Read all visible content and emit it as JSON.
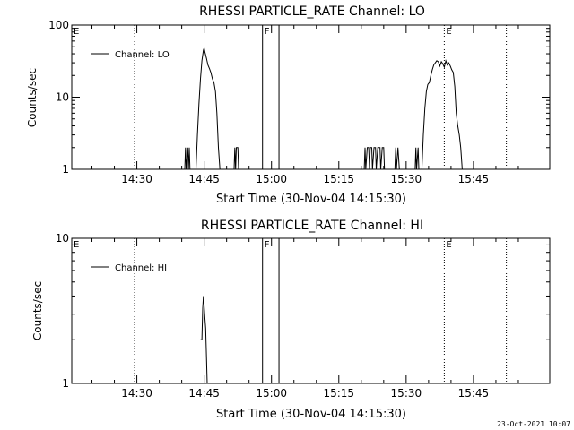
{
  "footer": {
    "timestamp": "23-Oct-2021 10:07"
  },
  "chart_data": [
    {
      "type": "line",
      "title": "RHESSI PARTICLE_RATE Channel: LO",
      "xlabel": "Start Time (30-Nov-04 14:15:30)",
      "ylabel": "Counts/sec",
      "scale": "log",
      "xlim": [
        "14:15:30",
        "16:02"
      ],
      "ylim": [
        1,
        100
      ],
      "xticks": [
        "14:30",
        "14:45",
        "15:00",
        "15:15",
        "15:30",
        "15:45"
      ],
      "yticks": [
        "1",
        "10",
        "100"
      ],
      "legend": {
        "position": "top-left",
        "entries": [
          "Channel: LO"
        ]
      },
      "flags": [
        {
          "label": "E",
          "time": "14:15:30",
          "style": "dotted"
        },
        {
          "label": "",
          "time": "14:29:30",
          "style": "dotted"
        },
        {
          "label": "F",
          "time": "14:58:00",
          "style": "solid"
        },
        {
          "label": "",
          "time": "15:01:40",
          "style": "solid"
        },
        {
          "label": "E",
          "time": "15:38:30",
          "style": "dotted"
        },
        {
          "label": "",
          "time": "15:52:20",
          "style": "dotted"
        }
      ],
      "series": [
        {
          "name": "Channel: LO",
          "segments": [
            [
              [
                "14:40:40",
                1
              ],
              [
                "14:40:50",
                2
              ],
              [
                "14:41:00",
                1
              ],
              [
                "14:41:20",
                2
              ],
              [
                "14:41:30",
                1
              ],
              [
                "14:41:40",
                2
              ],
              [
                "14:41:50",
                1
              ]
            ],
            [
              [
                "14:43:10",
                1
              ],
              [
                "14:43:30",
                3
              ],
              [
                "14:43:50",
                8
              ],
              [
                "14:44:10",
                18
              ],
              [
                "14:44:30",
                32
              ],
              [
                "14:44:50",
                45
              ],
              [
                "14:45:00",
                48
              ],
              [
                "14:45:10",
                42
              ],
              [
                "14:45:30",
                35
              ],
              [
                "14:45:50",
                28
              ],
              [
                "14:46:10",
                25
              ],
              [
                "14:46:30",
                22
              ],
              [
                "14:46:50",
                18
              ],
              [
                "14:47:10",
                16
              ],
              [
                "14:47:30",
                12
              ],
              [
                "14:47:50",
                6
              ],
              [
                "14:48:10",
                2
              ],
              [
                "14:48:30",
                1
              ]
            ],
            [
              [
                "14:51:40",
                1
              ],
              [
                "14:51:50",
                2
              ],
              [
                "14:52:00",
                1
              ],
              [
                "14:52:10",
                2
              ],
              [
                "14:52:30",
                2
              ],
              [
                "14:52:40",
                1
              ]
            ],
            [
              [
                "15:20:40",
                1
              ],
              [
                "15:20:50",
                2
              ],
              [
                "15:21:00",
                1
              ],
              [
                "15:21:20",
                2
              ],
              [
                "15:21:40",
                2
              ],
              [
                "15:21:50",
                1
              ],
              [
                "15:22:00",
                2
              ],
              [
                "15:22:20",
                2
              ],
              [
                "15:22:30",
                1
              ],
              [
                "15:22:50",
                2
              ],
              [
                "15:23:10",
                2
              ],
              [
                "15:23:20",
                1
              ],
              [
                "15:23:40",
                2
              ],
              [
                "15:24:10",
                2
              ],
              [
                "15:24:20",
                1
              ],
              [
                "15:24:40",
                2
              ],
              [
                "15:25:00",
                2
              ],
              [
                "15:25:10",
                1
              ]
            ],
            [
              [
                "15:27:30",
                1
              ],
              [
                "15:27:40",
                2
              ],
              [
                "15:27:50",
                1
              ],
              [
                "15:28:10",
                2
              ],
              [
                "15:28:30",
                1
              ]
            ],
            [
              [
                "15:32:00",
                1
              ],
              [
                "15:32:10",
                2
              ],
              [
                "15:32:20",
                1
              ],
              [
                "15:32:40",
                2
              ],
              [
                "15:32:50",
                1
              ]
            ],
            [
              [
                "15:33:30",
                1
              ],
              [
                "15:33:50",
                3
              ],
              [
                "15:34:10",
                7
              ],
              [
                "15:34:30",
                12
              ],
              [
                "15:34:50",
                15
              ],
              [
                "15:35:10",
                16
              ],
              [
                "15:35:30",
                20
              ],
              [
                "15:35:50",
                24
              ],
              [
                "15:36:10",
                28
              ],
              [
                "15:36:30",
                30
              ],
              [
                "15:36:50",
                32
              ],
              [
                "15:37:10",
                31
              ],
              [
                "15:37:30",
                27
              ],
              [
                "15:37:50",
                31
              ],
              [
                "15:38:10",
                29
              ],
              [
                "15:38:30",
                26
              ],
              [
                "15:38:50",
                32
              ],
              [
                "15:39:10",
                28
              ],
              [
                "15:39:30",
                30
              ],
              [
                "15:39:50",
                27
              ],
              [
                "15:40:10",
                24
              ],
              [
                "15:40:30",
                22
              ],
              [
                "15:40:50",
                14
              ],
              [
                "15:41:10",
                6
              ],
              [
                "15:41:30",
                4
              ],
              [
                "15:41:50",
                3
              ],
              [
                "15:42:10",
                2
              ],
              [
                "15:42:30",
                1
              ]
            ]
          ]
        }
      ]
    },
    {
      "type": "line",
      "title": "RHESSI PARTICLE_RATE Channel: HI",
      "xlabel": "Start Time (30-Nov-04 14:15:30)",
      "ylabel": "Counts/sec",
      "scale": "log",
      "xlim": [
        "14:15:30",
        "16:02"
      ],
      "ylim": [
        1,
        10
      ],
      "xticks": [
        "14:30",
        "14:45",
        "15:00",
        "15:15",
        "15:30",
        "15:45"
      ],
      "yticks": [
        "1",
        "10"
      ],
      "legend": {
        "position": "top-left",
        "entries": [
          "Channel: HI"
        ]
      },
      "flags": [
        {
          "label": "E",
          "time": "14:15:30",
          "style": "dotted"
        },
        {
          "label": "",
          "time": "14:29:30",
          "style": "dotted"
        },
        {
          "label": "F",
          "time": "14:58:00",
          "style": "solid"
        },
        {
          "label": "",
          "time": "15:01:40",
          "style": "solid"
        },
        {
          "label": "E",
          "time": "15:38:30",
          "style": "dotted"
        },
        {
          "label": "",
          "time": "15:52:20",
          "style": "dotted"
        }
      ],
      "series": [
        {
          "name": "Channel: HI",
          "segments": [
            [
              [
                "14:44:10",
                2
              ],
              [
                "14:44:30",
                2
              ],
              [
                "14:44:40",
                3.3
              ],
              [
                "14:44:50",
                4
              ],
              [
                "14:45:00",
                3.4
              ],
              [
                "14:45:10",
                2.8
              ],
              [
                "14:45:20",
                2.4
              ],
              [
                "14:45:30",
                1.6
              ],
              [
                "14:45:40",
                1
              ]
            ]
          ]
        }
      ]
    }
  ]
}
